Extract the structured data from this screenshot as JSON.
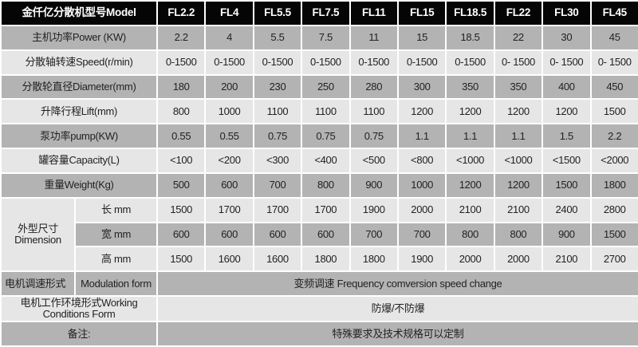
{
  "header": {
    "label": "金仟亿分散机型号Model",
    "models": [
      "FL2.2",
      "FL4",
      "FL5.5",
      "FL7.5",
      "FL11",
      "FL15",
      "FL18.5",
      "FL22",
      "FL30",
      "FL45"
    ]
  },
  "rows": [
    {
      "label": "主机功率Power (KW)",
      "values": [
        "2.2",
        "4",
        "5.5",
        "7.5",
        "11",
        "15",
        "18.5",
        "22",
        "30",
        "45"
      ]
    },
    {
      "label": "分散轴转速Speed(r/min)",
      "values": [
        "0-1500",
        "0-1500",
        "0-1500",
        "0-1500",
        "0-1500",
        "0-1500",
        "0-1500",
        "0- 1500",
        "0- 1500",
        "0- 1500"
      ]
    },
    {
      "label": "分散轮直径Diameter(mm)",
      "values": [
        "180",
        "200",
        "230",
        "250",
        "280",
        "300",
        "350",
        "350",
        "400",
        "450"
      ]
    },
    {
      "label": "升降行程Lift(mm)",
      "values": [
        "800",
        "1000",
        "1100",
        "1100",
        "1100",
        "1200",
        "1200",
        "1200",
        "1200",
        "1500"
      ]
    },
    {
      "label": "泵功率pump(KW)",
      "values": [
        "0.55",
        "0.55",
        "0.75",
        "0.75",
        "0.75",
        "1.1",
        "1.1",
        "1.1",
        "1.5",
        "2.2"
      ]
    },
    {
      "label": "罐容量Capacity(L)",
      "values": [
        "<100",
        "<200",
        "<300",
        "<400",
        "<500",
        "<800",
        "<1000",
        "<1000",
        "<1500",
        "<2000"
      ]
    },
    {
      "label": "重量Weight(Kg)",
      "values": [
        "500",
        "600",
        "700",
        "800",
        "900",
        "1000",
        "1200",
        "1200",
        "1500",
        "1800"
      ]
    }
  ],
  "dimension": {
    "label_cn": "外型尺寸",
    "label_en": "Dimension",
    "rows": [
      {
        "label": "长 mm",
        "values": [
          "1500",
          "1700",
          "1700",
          "1700",
          "1900",
          "2000",
          "2100",
          "2100",
          "2400",
          "2800"
        ]
      },
      {
        "label": "宽 mm",
        "values": [
          "600",
          "600",
          "600",
          "600",
          "700",
          "700",
          "800",
          "800",
          "900",
          "1500"
        ]
      },
      {
        "label": "高 mm",
        "values": [
          "1500",
          "1600",
          "1600",
          "1800",
          "1800",
          "1900",
          "2000",
          "2000",
          "2100",
          "2700"
        ]
      }
    ]
  },
  "modulation": {
    "label_cn": "电机调速形式",
    "label_en": "Modulation form",
    "value": "变频调速 Frequency comversion speed change"
  },
  "working": {
    "label": "电机工作环境形式Working Conditions Form",
    "value": "防爆/不防爆"
  },
  "notes": {
    "label": "备注:",
    "value": "特殊要求及技术规格可以定制"
  },
  "colors": {
    "header_bg": "#050505",
    "dark_row": "#b3b3b3",
    "light_row": "#e6e6e6"
  }
}
